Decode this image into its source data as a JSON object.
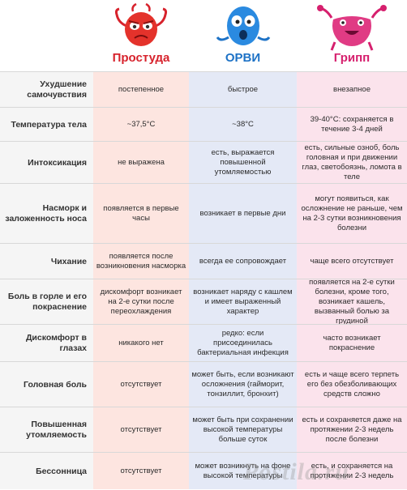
{
  "columns": {
    "prostuda": {
      "title": "Простуда",
      "color": "#d7222c"
    },
    "orvi": {
      "title": "ОРВИ",
      "color": "#1d72c6"
    },
    "gripp": {
      "title": "Грипп",
      "color": "#d6206e"
    }
  },
  "rows": [
    {
      "label": "Ухудшение самочувствия",
      "prostuda": "постепенное",
      "orvi": "быстрое",
      "gripp": "внезапное"
    },
    {
      "label": "Температура тела",
      "prostuda": "~37,5°C",
      "orvi": "~38°C",
      "gripp": "39-40°C: сохраняется в течение 3-4 дней"
    },
    {
      "label": "Интоксикация",
      "prostuda": "не выражена",
      "orvi": "есть, выражается повышенной утомляемостью",
      "gripp": "есть, сильные озноб, боль головная и при движении глаз, светобоязнь, ломота в теле"
    },
    {
      "label": "Насморк и заложенность носа",
      "prostuda": "появляется в первые часы",
      "orvi": "возникает в первые дни",
      "gripp": "могут появиться, как осложнение не раньше, чем на 2-3 сутки возникновения болезни"
    },
    {
      "label": "Чихание",
      "prostuda": "появляется после возникновения насморка",
      "orvi": "всегда ее сопровождает",
      "gripp": "чаще всего отсутствует"
    },
    {
      "label": "Боль в горле и его покраснение",
      "prostuda": "дискомфорт возникает на 2-е сутки после переохлаждения",
      "orvi": "возникает наряду с кашлем и имеет выраженный характер",
      "gripp": "появляется на 2-е сутки болезни, кроме того, возникает кашель, вызванный болью за грудиной"
    },
    {
      "label": "Дискомфорт в глазах",
      "prostuda": "никакого нет",
      "orvi": "редко: если присоединилась бактериальная инфекция",
      "gripp": "часто возникает покраснение"
    },
    {
      "label": "Головная боль",
      "prostuda": "отсутствует",
      "orvi": "может быть, если возникают осложнения (гайморит, тонзиллит, бронхит)",
      "gripp": "есть и чаще всего терпеть его без обезболивающих средств сложно"
    },
    {
      "label": "Повышенная утомляемость",
      "prostuda": "отсутствует",
      "orvi": "может быть при сохранении высокой температуры больше суток",
      "gripp": "есть и сохраняется даже на протяжении 2-3 недель после болезни"
    },
    {
      "label": "Бессонница",
      "prostuda": "отсутствует",
      "orvi": "может возникнуть на фоне высокой температуры",
      "gripp": "есть, и сохраняется на протяжении 2-3 недель"
    }
  ],
  "watermark": "Postila.ru"
}
